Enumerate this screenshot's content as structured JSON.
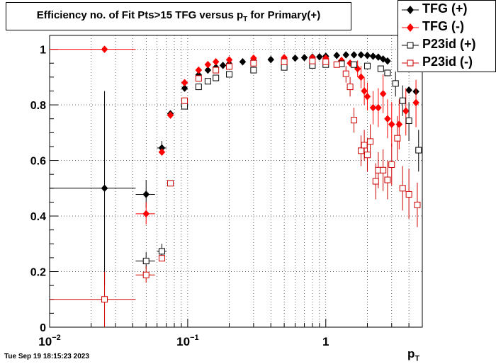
{
  "chart_data": {
    "type": "scatter",
    "title": "Efficiency no. of Fit Pts>15 TFG versus p",
    "title_sub": "T",
    "title_suffix": " for Primary(+)",
    "xlabel": "p",
    "xlabel_sub": "T",
    "ylabel": "",
    "xscale": "log",
    "xlim": [
      0.01,
      5.0
    ],
    "ylim": [
      0,
      1.05
    ],
    "grid": true,
    "legend_position": "top-right",
    "x_ticks": [
      {
        "value": 0.01,
        "base": "10",
        "exp": "−2"
      },
      {
        "value": 0.1,
        "base": "10",
        "exp": "−1"
      },
      {
        "value": 1,
        "base": "1",
        "exp": ""
      }
    ],
    "y_ticks": [
      "0",
      "0.2",
      "0.4",
      "0.6",
      "0.8",
      "1"
    ],
    "series": [
      {
        "name": "TFG (+)",
        "color": "#000000",
        "marker": "diamond-filled",
        "points": [
          {
            "x": 0.025,
            "y": 0.5,
            "xerr": [
              0.01,
              0.042
            ],
            "yerr": [
              0.15,
              0.85
            ]
          },
          {
            "x": 0.05,
            "y": 0.478,
            "xerr": [
              0.042,
              0.058
            ],
            "yerr": [
              0.43,
              0.53
            ]
          },
          {
            "x": 0.065,
            "y": 0.645,
            "xerr": [
              0.06,
              0.07
            ],
            "yerr": [
              0.62,
              0.67
            ]
          },
          {
            "x": 0.075,
            "y": 0.768
          },
          {
            "x": 0.095,
            "y": 0.86
          },
          {
            "x": 0.12,
            "y": 0.908
          },
          {
            "x": 0.14,
            "y": 0.925
          },
          {
            "x": 0.16,
            "y": 0.935
          },
          {
            "x": 0.18,
            "y": 0.942
          },
          {
            "x": 0.2,
            "y": 0.948
          },
          {
            "x": 0.25,
            "y": 0.955
          },
          {
            "x": 0.3,
            "y": 0.96
          },
          {
            "x": 0.4,
            "y": 0.963
          },
          {
            "x": 0.5,
            "y": 0.965
          },
          {
            "x": 0.6,
            "y": 0.968
          },
          {
            "x": 0.7,
            "y": 0.97
          },
          {
            "x": 0.8,
            "y": 0.972
          },
          {
            "x": 0.9,
            "y": 0.973
          },
          {
            "x": 1.0,
            "y": 0.975
          },
          {
            "x": 1.2,
            "y": 0.978
          },
          {
            "x": 1.4,
            "y": 0.98
          },
          {
            "x": 1.6,
            "y": 0.98
          },
          {
            "x": 1.8,
            "y": 0.98
          },
          {
            "x": 2.0,
            "y": 0.978
          },
          {
            "x": 2.2,
            "y": 0.975
          },
          {
            "x": 2.4,
            "y": 0.972
          },
          {
            "x": 2.6,
            "y": 0.965
          },
          {
            "x": 2.8,
            "y": 0.958
          },
          {
            "x": 3.5,
            "y": 0.94
          },
          {
            "x": 4.0,
            "y": 0.853
          },
          {
            "x": 4.5,
            "y": 0.848
          }
        ]
      },
      {
        "name": "TFG (-)",
        "color": "#ff0000",
        "marker": "diamond-filled",
        "points": [
          {
            "x": 0.025,
            "y": 1.0,
            "xerr": [
              0.01,
              0.042
            ]
          },
          {
            "x": 0.05,
            "y": 0.408,
            "xerr": [
              0.042,
              0.058
            ],
            "yerr": [
              0.37,
              0.45
            ]
          },
          {
            "x": 0.065,
            "y": 0.63
          },
          {
            "x": 0.075,
            "y": 0.763
          },
          {
            "x": 0.095,
            "y": 0.88
          },
          {
            "x": 0.12,
            "y": 0.925
          },
          {
            "x": 0.14,
            "y": 0.945
          },
          {
            "x": 0.16,
            "y": 0.955
          },
          {
            "x": 0.2,
            "y": 0.962
          },
          {
            "x": 0.3,
            "y": 0.968
          },
          {
            "x": 0.5,
            "y": 0.97
          },
          {
            "x": 0.8,
            "y": 0.97
          },
          {
            "x": 1.0,
            "y": 0.968
          },
          {
            "x": 1.3,
            "y": 0.96
          },
          {
            "x": 1.5,
            "y": 0.95
          },
          {
            "x": 1.7,
            "y": 0.93,
            "yerr": [
              0.9,
              0.96
            ]
          },
          {
            "x": 1.8,
            "y": 0.9,
            "yerr": [
              0.86,
              0.94
            ]
          },
          {
            "x": 1.9,
            "y": 0.85,
            "yerr": [
              0.8,
              0.9
            ]
          },
          {
            "x": 2.0,
            "y": 0.83,
            "yerr": [
              0.78,
              0.88
            ]
          },
          {
            "x": 2.2,
            "y": 0.79,
            "yerr": [
              0.73,
              0.85
            ]
          },
          {
            "x": 2.4,
            "y": 0.79,
            "yerr": [
              0.72,
              0.86
            ]
          },
          {
            "x": 2.6,
            "y": 0.84,
            "yerr": [
              0.77,
              0.91
            ]
          },
          {
            "x": 2.8,
            "y": 0.75,
            "yerr": [
              0.68,
              0.82
            ]
          },
          {
            "x": 3.0,
            "y": 0.73,
            "yerr": [
              0.65,
              0.81
            ]
          },
          {
            "x": 3.4,
            "y": 0.73,
            "yerr": [
              0.64,
              0.82
            ]
          },
          {
            "x": 3.8,
            "y": 0.778,
            "yerr": [
              0.69,
              0.86
            ]
          },
          {
            "x": 4.5,
            "y": 0.808,
            "yerr": [
              0.72,
              0.89
            ]
          }
        ]
      },
      {
        "name": "P23id (+)",
        "color": "#000000",
        "marker": "square-open",
        "points": [
          {
            "x": 0.05,
            "y": 0.238,
            "xerr": [
              0.042,
              0.058
            ],
            "yerr": [
              0.21,
              0.27
            ]
          },
          {
            "x": 0.065,
            "y": 0.273,
            "xerr": [
              0.06,
              0.07
            ],
            "yerr": [
              0.25,
              0.3
            ]
          },
          {
            "x": 0.095,
            "y": 0.795
          },
          {
            "x": 0.12,
            "y": 0.865
          },
          {
            "x": 0.14,
            "y": 0.885
          },
          {
            "x": 0.16,
            "y": 0.897
          },
          {
            "x": 0.2,
            "y": 0.91
          },
          {
            "x": 0.3,
            "y": 0.925
          },
          {
            "x": 0.5,
            "y": 0.935
          },
          {
            "x": 0.8,
            "y": 0.942
          },
          {
            "x": 1.0,
            "y": 0.945
          },
          {
            "x": 1.3,
            "y": 0.948
          },
          {
            "x": 1.6,
            "y": 0.945
          },
          {
            "x": 2.0,
            "y": 0.94
          },
          {
            "x": 2.5,
            "y": 0.93
          },
          {
            "x": 2.8,
            "y": 0.915
          },
          {
            "x": 3.2,
            "y": 0.877,
            "yerr": [
              0.83,
              0.92
            ]
          },
          {
            "x": 3.6,
            "y": 0.815,
            "yerr": [
              0.76,
              0.87
            ]
          },
          {
            "x": 4.0,
            "y": 0.743,
            "yerr": [
              0.67,
              0.81
            ]
          },
          {
            "x": 4.7,
            "y": 0.637,
            "yerr": [
              0.56,
              0.71
            ]
          }
        ]
      },
      {
        "name": "P23id (-)",
        "color": "#cc0000",
        "marker": "square-open",
        "points": [
          {
            "x": 0.025,
            "y": 0.1,
            "xerr": [
              0.01,
              0.042
            ],
            "yerr": [
              0.0,
              0.2
            ]
          },
          {
            "x": 0.05,
            "y": 0.188,
            "xerr": [
              0.042,
              0.058
            ],
            "yerr": [
              0.16,
              0.22
            ]
          },
          {
            "x": 0.065,
            "y": 0.248
          },
          {
            "x": 0.075,
            "y": 0.518
          },
          {
            "x": 0.095,
            "y": 0.815
          },
          {
            "x": 0.12,
            "y": 0.895
          },
          {
            "x": 0.16,
            "y": 0.925
          },
          {
            "x": 0.2,
            "y": 0.938
          },
          {
            "x": 0.3,
            "y": 0.95
          },
          {
            "x": 0.5,
            "y": 0.955
          },
          {
            "x": 0.8,
            "y": 0.958
          },
          {
            "x": 1.0,
            "y": 0.955
          },
          {
            "x": 1.2,
            "y": 0.945
          },
          {
            "x": 1.4,
            "y": 0.912,
            "yerr": [
              0.88,
              0.94
            ]
          },
          {
            "x": 1.5,
            "y": 0.865,
            "yerr": [
              0.83,
              0.9
            ]
          },
          {
            "x": 1.6,
            "y": 0.745,
            "yerr": [
              0.7,
              0.79
            ]
          },
          {
            "x": 1.8,
            "y": 0.635,
            "yerr": [
              0.58,
              0.69
            ]
          },
          {
            "x": 1.9,
            "y": 0.655,
            "yerr": [
              0.6,
              0.71
            ]
          },
          {
            "x": 2.0,
            "y": 0.62,
            "yerr": [
              0.56,
              0.68
            ]
          },
          {
            "x": 2.1,
            "y": 0.668,
            "yerr": [
              0.61,
              0.73
            ]
          },
          {
            "x": 2.3,
            "y": 0.525,
            "yerr": [
              0.46,
              0.59
            ]
          },
          {
            "x": 2.4,
            "y": 0.565,
            "yerr": [
              0.5,
              0.63
            ]
          },
          {
            "x": 2.6,
            "y": 0.565,
            "yerr": [
              0.49,
              0.64
            ]
          },
          {
            "x": 2.8,
            "y": 0.53,
            "yerr": [
              0.46,
              0.6
            ]
          },
          {
            "x": 3.0,
            "y": 0.585,
            "yerr": [
              0.51,
              0.66
            ]
          },
          {
            "x": 3.3,
            "y": 0.68,
            "yerr": [
              0.6,
              0.76
            ]
          },
          {
            "x": 3.6,
            "y": 0.5,
            "yerr": [
              0.42,
              0.58
            ]
          },
          {
            "x": 4.0,
            "y": 0.478,
            "yerr": [
              0.39,
              0.57
            ]
          },
          {
            "x": 4.6,
            "y": 0.44,
            "yerr": [
              0.36,
              0.52
            ]
          }
        ]
      }
    ]
  },
  "legend": {
    "items": [
      {
        "label": "TFG (+)"
      },
      {
        "label": "TFG (-)"
      },
      {
        "label": "P23id (+)"
      },
      {
        "label": "P23id (-)"
      }
    ]
  },
  "footer": {
    "timestamp": "Tue Sep 19 18:15:23 2023"
  }
}
